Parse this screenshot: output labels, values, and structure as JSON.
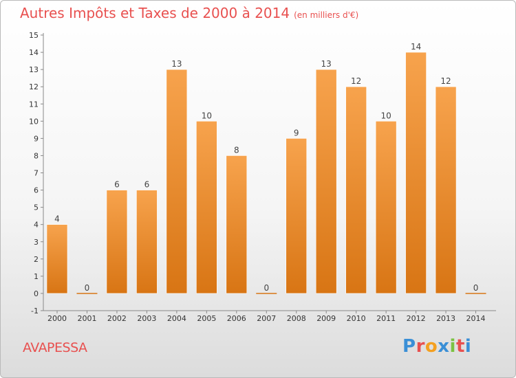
{
  "header": {
    "title": "Autres Impôts et Taxes de 2000 à 2014",
    "unit": "(en milliers d'€)"
  },
  "footer": {
    "place": "AVAPESSA",
    "logo": "Proxiti"
  },
  "colors": {
    "title": "#e8504f",
    "bar_top": "#f7a34d",
    "bar_bottom": "#d87514",
    "logo_letters": [
      "#3a8fd6",
      "#e8504f",
      "#f4a020",
      "#3a8fd6",
      "#7cc242",
      "#e8504f",
      "#3a8fd6"
    ]
  },
  "chart_data": {
    "type": "bar",
    "title": "Autres Impôts et Taxes de 2000 à 2014",
    "subtitle": "(en milliers d'€)",
    "xlabel": "",
    "ylabel": "",
    "categories": [
      "2000",
      "2001",
      "2002",
      "2003",
      "2004",
      "2005",
      "2006",
      "2007",
      "2008",
      "2009",
      "2010",
      "2011",
      "2012",
      "2013",
      "2014"
    ],
    "values": [
      4,
      0,
      6,
      6,
      13,
      10,
      8,
      0,
      9,
      13,
      12,
      10,
      14,
      12,
      0
    ],
    "ylim": [
      -1,
      15
    ],
    "yticks": [
      "-1",
      "0",
      "1",
      "2",
      "3",
      "4",
      "5",
      "6",
      "7",
      "8",
      "9",
      "10",
      "11",
      "12",
      "13",
      "14",
      "15"
    ],
    "grid": false,
    "legend": "none"
  }
}
